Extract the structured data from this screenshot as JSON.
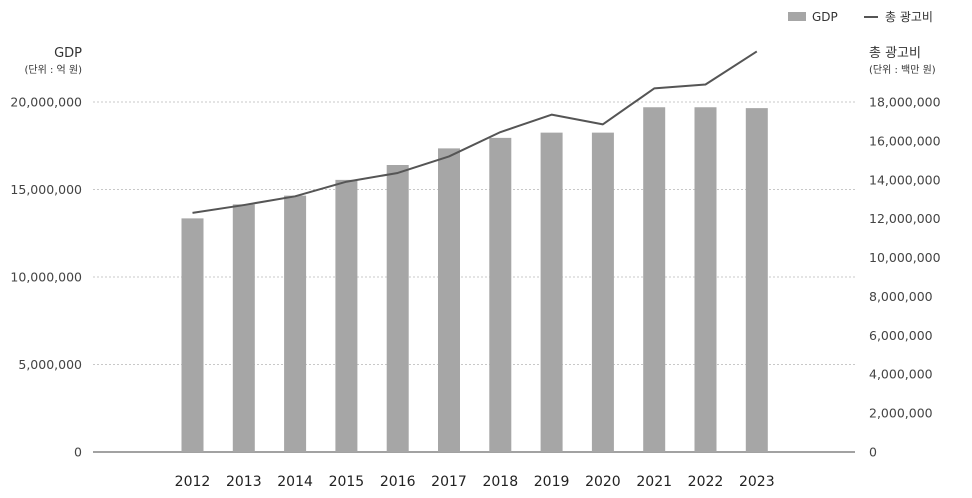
{
  "chart_data": {
    "type": "bar",
    "categories": [
      "2012",
      "2013",
      "2014",
      "2015",
      "2016",
      "2017",
      "2018",
      "2019",
      "2020",
      "2021",
      "2022",
      "2023"
    ],
    "series": [
      {
        "name": "GDP",
        "type": "bar",
        "axis": "left",
        "color": "#a6a6a6",
        "values": [
          13350000,
          14150000,
          14650000,
          15550000,
          16400000,
          17350000,
          17950000,
          18250000,
          18250000,
          19700000,
          19700000,
          19650000
        ]
      },
      {
        "name": "총 광고비",
        "type": "line",
        "axis": "right",
        "color": "#555555",
        "values": [
          12300000,
          12700000,
          13150000,
          13900000,
          14350000,
          15200000,
          16450000,
          17350000,
          16850000,
          18700000,
          18900000,
          20600000
        ]
      }
    ],
    "left_axis": {
      "title": "GDP",
      "unit": "(단위 : 억 원)",
      "ylim": [
        0,
        20000000
      ],
      "ticks": [
        "0",
        "5,000,000",
        "10,000,000",
        "15,000,000",
        "20,000,000"
      ]
    },
    "right_axis": {
      "title": "총 광고비",
      "unit": "(단위 : 백만 원)",
      "ylim": [
        0,
        18000000
      ],
      "ticks": [
        "0",
        "2,000,000",
        "4,000,000",
        "6,000,000",
        "8,000,000",
        "10,000,000",
        "12,000,000",
        "14,000,000",
        "16,000,000",
        "18,000,000"
      ]
    },
    "grid": true,
    "legend_position": "top-right",
    "title": ""
  }
}
